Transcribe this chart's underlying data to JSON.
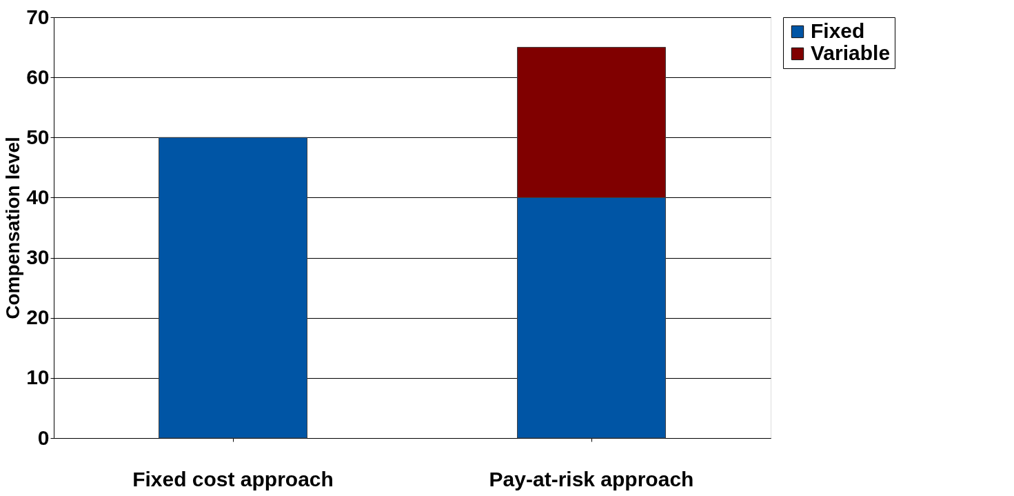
{
  "chart_data": {
    "type": "bar",
    "ylabel": "Compensation level",
    "categories": [
      "Fixed cost approach",
      "Pay-at-risk approach"
    ],
    "stacked": true,
    "series": [
      {
        "name": "Fixed",
        "color": "#0055a5",
        "values": [
          50,
          40
        ]
      },
      {
        "name": "Variable",
        "color": "#800000",
        "values": [
          null,
          25
        ]
      }
    ],
    "ylim": [
      0,
      70
    ],
    "yticks": [
      0,
      10,
      20,
      30,
      40,
      50,
      60,
      70
    ],
    "grid": "y",
    "legend": "right"
  }
}
